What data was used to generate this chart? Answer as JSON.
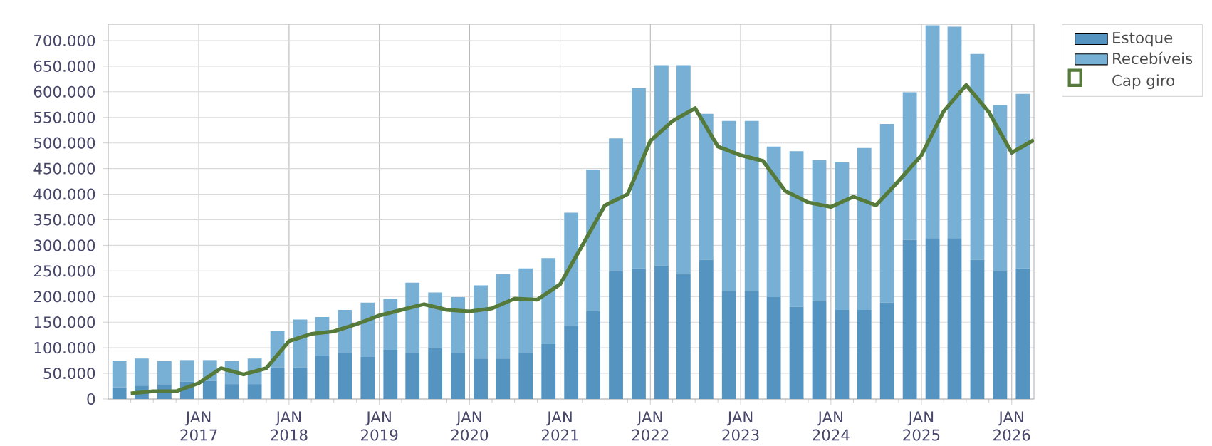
{
  "chart_data": {
    "type": "bar",
    "stacked": true,
    "x": [
      "2016-02-15",
      "2016-05-15",
      "2016-08-15",
      "2016-11-15",
      "2017-02-15",
      "2017-05-15",
      "2017-08-15",
      "2017-11-15",
      "2018-02-15",
      "2018-05-15",
      "2018-08-15",
      "2018-11-15",
      "2019-02-15",
      "2019-05-15",
      "2019-08-15",
      "2019-11-15",
      "2020-02-15",
      "2020-05-15",
      "2020-08-15",
      "2020-11-15",
      "2021-02-15",
      "2021-05-15",
      "2021-08-15",
      "2021-11-15",
      "2022-02-15",
      "2022-05-15",
      "2022-08-15",
      "2022-11-15",
      "2023-02-15",
      "2023-05-15",
      "2023-08-15",
      "2023-11-15",
      "2024-02-15",
      "2024-05-15",
      "2024-08-15",
      "2024-11-15",
      "2025-02-15",
      "2025-05-15",
      "2025-08-15",
      "2025-11-15",
      "2026-02-15"
    ],
    "series": [
      {
        "name": "Estoque",
        "color": "#5593c0",
        "values": [
          23000,
          26000,
          29000,
          34000,
          35000,
          29000,
          29000,
          62000,
          62000,
          85000,
          90000,
          82000,
          96000,
          90000,
          99000,
          90000,
          79000,
          79000,
          90000,
          107000,
          143000,
          171000,
          250000,
          255000,
          261000,
          244000,
          272000,
          210000,
          210000,
          199000,
          180000,
          191000,
          174000,
          174000,
          188000,
          311000,
          314000,
          314000,
          272000,
          250000,
          255000
        ]
      },
      {
        "name": "Recebíveis",
        "color": "#77b0d4",
        "values": [
          52000,
          53000,
          45000,
          42000,
          41000,
          45000,
          50000,
          70000,
          93000,
          75000,
          84000,
          106000,
          100000,
          137000,
          109000,
          109000,
          143000,
          165000,
          165000,
          168000,
          221000,
          277000,
          259000,
          352000,
          391000,
          408000,
          285000,
          333000,
          333000,
          294000,
          304000,
          276000,
          288000,
          316000,
          349000,
          288000,
          416000,
          413000,
          402000,
          324000,
          341000
        ]
      },
      {
        "name": "Cap giro",
        "type": "line",
        "color": "#557a3a",
        "x": [
          "2016-04-01",
          "2016-07-01",
          "2016-10-01",
          "2017-01-01",
          "2017-04-01",
          "2017-07-01",
          "2017-10-01",
          "2018-01-01",
          "2018-04-01",
          "2018-07-01",
          "2018-10-01",
          "2019-01-01",
          "2019-04-01",
          "2019-07-01",
          "2019-10-01",
          "2020-01-01",
          "2020-04-01",
          "2020-07-01",
          "2020-10-01",
          "2021-01-01",
          "2021-04-01",
          "2021-07-01",
          "2021-10-01",
          "2022-01-01",
          "2022-04-01",
          "2022-07-01",
          "2022-10-01",
          "2023-01-01",
          "2023-04-01",
          "2023-07-01",
          "2023-10-01",
          "2024-01-01",
          "2024-04-01",
          "2024-07-01",
          "2024-10-01",
          "2025-01-01",
          "2025-04-01",
          "2025-07-01",
          "2025-10-01",
          "2026-01-01",
          "2026-04-01"
        ],
        "values": [
          11000,
          15000,
          15000,
          31000,
          60000,
          48000,
          60000,
          113000,
          127000,
          132000,
          146000,
          163000,
          174000,
          185000,
          174000,
          171000,
          177000,
          196000,
          194000,
          224000,
          300000,
          378000,
          400000,
          504000,
          543000,
          568000,
          493000,
          476000,
          465000,
          406000,
          384000,
          375000,
          395000,
          378000,
          426000,
          476000,
          562000,
          613000,
          560000,
          481000,
          506000
        ]
      }
    ],
    "xlim": [
      "2016-01-01",
      "2026-04-01"
    ],
    "xticks": [
      {
        "value": "2016-04-01",
        "label": null
      },
      {
        "value": "2016-07-01",
        "label": null
      },
      {
        "value": "2016-10-01",
        "label": null
      },
      {
        "value": "2017-01-01",
        "label": "JAN 2017"
      },
      {
        "value": "2017-04-01",
        "label": null
      },
      {
        "value": "2017-07-01",
        "label": null
      },
      {
        "value": "2017-10-01",
        "label": null
      },
      {
        "value": "2018-01-01",
        "label": "JAN 2018"
      },
      {
        "value": "2018-04-01",
        "label": null
      },
      {
        "value": "2018-07-01",
        "label": null
      },
      {
        "value": "2018-10-01",
        "label": null
      },
      {
        "value": "2019-01-01",
        "label": "JAN 2019"
      },
      {
        "value": "2019-04-01",
        "label": null
      },
      {
        "value": "2019-07-01",
        "label": null
      },
      {
        "value": "2019-10-01",
        "label": null
      },
      {
        "value": "2020-01-01",
        "label": "JAN 2020"
      },
      {
        "value": "2020-04-01",
        "label": null
      },
      {
        "value": "2020-07-01",
        "label": null
      },
      {
        "value": "2020-10-01",
        "label": null
      },
      {
        "value": "2021-01-01",
        "label": "JAN 2021"
      },
      {
        "value": "2021-04-01",
        "label": null
      },
      {
        "value": "2021-07-01",
        "label": null
      },
      {
        "value": "2021-10-01",
        "label": null
      },
      {
        "value": "2022-01-01",
        "label": "JAN 2022"
      },
      {
        "value": "2022-04-01",
        "label": null
      },
      {
        "value": "2022-07-01",
        "label": null
      },
      {
        "value": "2022-10-01",
        "label": null
      },
      {
        "value": "2023-01-01",
        "label": "JAN 2023"
      },
      {
        "value": "2023-04-01",
        "label": null
      },
      {
        "value": "2023-07-01",
        "label": null
      },
      {
        "value": "2023-10-01",
        "label": null
      },
      {
        "value": "2024-01-01",
        "label": "JAN 2024"
      },
      {
        "value": "2024-04-01",
        "label": null
      },
      {
        "value": "2024-07-01",
        "label": null
      },
      {
        "value": "2024-10-01",
        "label": null
      },
      {
        "value": "2025-01-01",
        "label": "JAN 2025"
      },
      {
        "value": "2025-04-01",
        "label": null
      },
      {
        "value": "2025-07-01",
        "label": null
      },
      {
        "value": "2025-10-01",
        "label": null
      },
      {
        "value": "2026-01-01",
        "label": "JAN 2026"
      }
    ],
    "ylim": [
      0,
      732000
    ],
    "yticks": [
      {
        "value": 0,
        "label": "0"
      },
      {
        "value": 50000,
        "label": "50.000"
      },
      {
        "value": 100000,
        "label": "100.000"
      },
      {
        "value": 150000,
        "label": "150.000"
      },
      {
        "value": 200000,
        "label": "200.000"
      },
      {
        "value": 250000,
        "label": "250.000"
      },
      {
        "value": 300000,
        "label": "300.000"
      },
      {
        "value": 350000,
        "label": "350.000"
      },
      {
        "value": 400000,
        "label": "400.000"
      },
      {
        "value": 450000,
        "label": "450.000"
      },
      {
        "value": 500000,
        "label": "500.000"
      },
      {
        "value": 550000,
        "label": "550.000"
      },
      {
        "value": 600000,
        "label": "600.000"
      },
      {
        "value": 650000,
        "label": "650.000"
      },
      {
        "value": 700000,
        "label": "700.000"
      }
    ],
    "grid": true,
    "legend": "top right"
  }
}
